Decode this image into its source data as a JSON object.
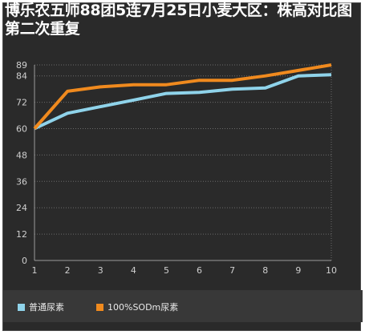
{
  "title": "博乐农五师88团5连7月25日小麦大区：株高对比图第二次重复",
  "colors": {
    "background": "#2a2a2a",
    "legend_background": "#383838",
    "grid": "#6a6a6a",
    "tick_text": "#cfcfcf",
    "series_1": "#8fd3ea",
    "series_2": "#f08a1e"
  },
  "chart_data": {
    "type": "line",
    "title": "博乐农五师88团5连7月25日小麦大区：株高对比图第二次重复",
    "xlabel": "",
    "ylabel": "",
    "x": [
      1,
      2,
      3,
      4,
      5,
      6,
      7,
      8,
      9,
      10
    ],
    "x_tick_labels": [
      "1",
      "2",
      "3",
      "4",
      "5",
      "6",
      "7",
      "8",
      "9",
      "10"
    ],
    "y_ticks": [
      0,
      12,
      24,
      36,
      48,
      60,
      72,
      84,
      89
    ],
    "ylim": [
      0,
      89
    ],
    "grid": true,
    "legend_position": "bottom",
    "series": [
      {
        "name": "普通尿素",
        "color": "#8fd3ea",
        "values": [
          60,
          67,
          70,
          73,
          76,
          76.5,
          78,
          78.5,
          84,
          84.5
        ]
      },
      {
        "name": "100%SODm尿素",
        "color": "#f08a1e",
        "values": [
          60,
          77,
          79,
          80,
          80,
          82,
          82,
          84,
          86.5,
          89
        ]
      }
    ]
  }
}
